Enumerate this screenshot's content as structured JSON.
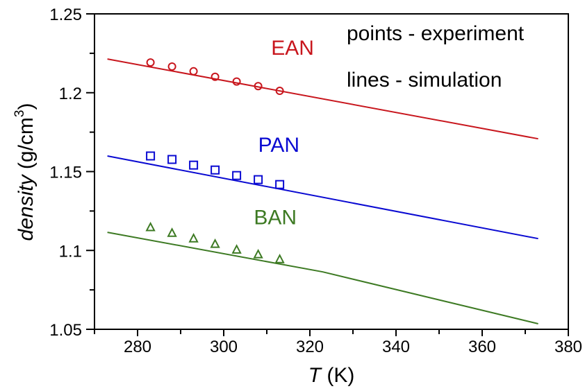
{
  "chart_data": {
    "type": "line",
    "title": "",
    "xlabel_italic": "T",
    "xlabel_unit": " (K)",
    "ylabel_italic": "density",
    "ylabel_unit": " (g/cm",
    "ylabel_sup": "3",
    "ylabel_close": ")",
    "xlim": [
      270,
      380
    ],
    "ylim": [
      1.05,
      1.25
    ],
    "xticks": [
      280,
      300,
      320,
      340,
      360,
      380
    ],
    "xticks_minor": [
      270,
      290,
      310,
      330,
      350,
      370
    ],
    "yticks": [
      1.05,
      1.1,
      1.15,
      1.2,
      1.25
    ],
    "ytick_labels": [
      "1.05",
      "1.1",
      "1.15",
      "1.2",
      "1.25"
    ],
    "yticks_minor": [
      1.075,
      1.125,
      1.175,
      1.225
    ],
    "grid": false,
    "annotations": [
      {
        "text": "points - experiment"
      },
      {
        "text": "lines - simulation"
      }
    ],
    "series": [
      {
        "name": "EAN",
        "color": "#c8161d",
        "marker": "circle",
        "line": {
          "x": [
            273,
            373
          ],
          "y": [
            1.2214,
            1.1708
          ]
        },
        "points": {
          "x": [
            283,
            288,
            293,
            298,
            303,
            308,
            313
          ],
          "y": [
            1.2192,
            1.2166,
            1.2136,
            1.2101,
            1.2071,
            1.2042,
            1.2012
          ]
        },
        "label_at": [
          311,
          1.224
        ]
      },
      {
        "name": "PAN",
        "color": "#0a0ad2",
        "marker": "square",
        "line": {
          "x": [
            273,
            373
          ],
          "y": [
            1.1599,
            1.1075
          ]
        },
        "points": {
          "x": [
            283,
            288,
            293,
            298,
            303,
            308,
            313
          ],
          "y": [
            1.1599,
            1.1577,
            1.1541,
            1.151,
            1.1475,
            1.1449,
            1.1418
          ]
        },
        "label_at": [
          308,
          1.1625
        ]
      },
      {
        "name": "BAN",
        "color": "#3d7a23",
        "marker": "triangle",
        "line": {
          "x": [
            273,
            323,
            373
          ],
          "y": [
            1.1115,
            1.0864,
            1.0535
          ]
        },
        "points": {
          "x": [
            283,
            288,
            293,
            298,
            303,
            308,
            313
          ],
          "y": [
            1.1146,
            1.111,
            1.1075,
            1.104,
            1.1004,
            1.0974,
            1.0943
          ]
        },
        "label_at": [
          307,
          1.1165
        ]
      }
    ]
  }
}
